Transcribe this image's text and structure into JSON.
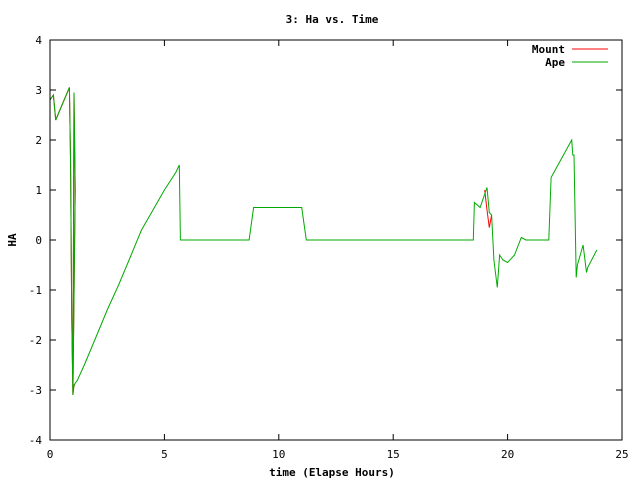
{
  "chart_data": {
    "type": "line",
    "title": "3: Ha vs. Time",
    "xlabel": "time (Elapse Hours)",
    "ylabel": "HA",
    "xlim": [
      0,
      25
    ],
    "ylim": [
      -4,
      4
    ],
    "xticks": [
      "0",
      "5",
      "10",
      "15",
      "20",
      "25"
    ],
    "yticks": [
      "4",
      "3",
      "2",
      "1",
      "0",
      "-1",
      "-2",
      "-3",
      "-4"
    ],
    "grid": false,
    "legend_position": "top-right",
    "series": [
      {
        "name": "Mount",
        "color": "#ff0000",
        "x": [
          0.0,
          0.15,
          0.25,
          0.85,
          0.9,
          0.95,
          1.0,
          1.05,
          1.1,
          1.0,
          1.05,
          1.1
        ],
        "y": [
          2.8,
          2.9,
          2.4,
          3.05,
          1.5,
          -1.5,
          -3.1,
          2.95,
          1.0,
          -3.1,
          -2.9,
          -2.9
        ]
      },
      {
        "name": "Mount",
        "color": "#ff0000",
        "x": [
          19.0,
          19.1,
          19.2,
          19.3
        ],
        "y": [
          1.0,
          0.6,
          0.25,
          0.5
        ]
      },
      {
        "name": "Ape",
        "color": "#00aa00",
        "x": [
          0.0,
          0.15,
          0.25,
          0.85,
          0.9,
          0.95,
          1.0,
          1.05,
          1.1,
          1.0,
          1.05,
          1.2,
          1.5,
          2.0,
          2.5,
          3.0,
          3.5,
          4.0,
          4.5,
          5.0,
          5.5,
          5.65,
          5.7,
          8.7,
          8.9,
          11.0,
          11.2,
          18.5,
          18.55,
          18.8,
          19.1,
          19.2,
          19.3,
          19.4,
          19.55,
          19.65,
          19.8,
          20.0,
          20.3,
          20.6,
          20.8,
          21.0,
          21.8,
          21.9,
          22.8,
          22.85,
          22.9,
          23.0,
          23.05,
          23.3,
          23.45,
          23.5,
          23.9
        ],
        "y": [
          2.8,
          2.9,
          2.4,
          3.05,
          1.5,
          -1.5,
          -3.1,
          2.95,
          1.0,
          -3.1,
          -2.9,
          -2.8,
          -2.5,
          -1.95,
          -1.4,
          -0.9,
          -0.35,
          0.2,
          0.6,
          1.0,
          1.35,
          1.5,
          0.0,
          0.0,
          0.65,
          0.65,
          0.0,
          0.0,
          0.75,
          0.65,
          1.05,
          0.55,
          0.5,
          -0.4,
          -0.95,
          -0.3,
          -0.4,
          -0.45,
          -0.3,
          0.05,
          0.0,
          0.0,
          0.0,
          1.25,
          2.0,
          1.7,
          1.7,
          -0.75,
          -0.5,
          -0.1,
          -0.65,
          -0.55,
          -0.2
        ]
      }
    ]
  }
}
